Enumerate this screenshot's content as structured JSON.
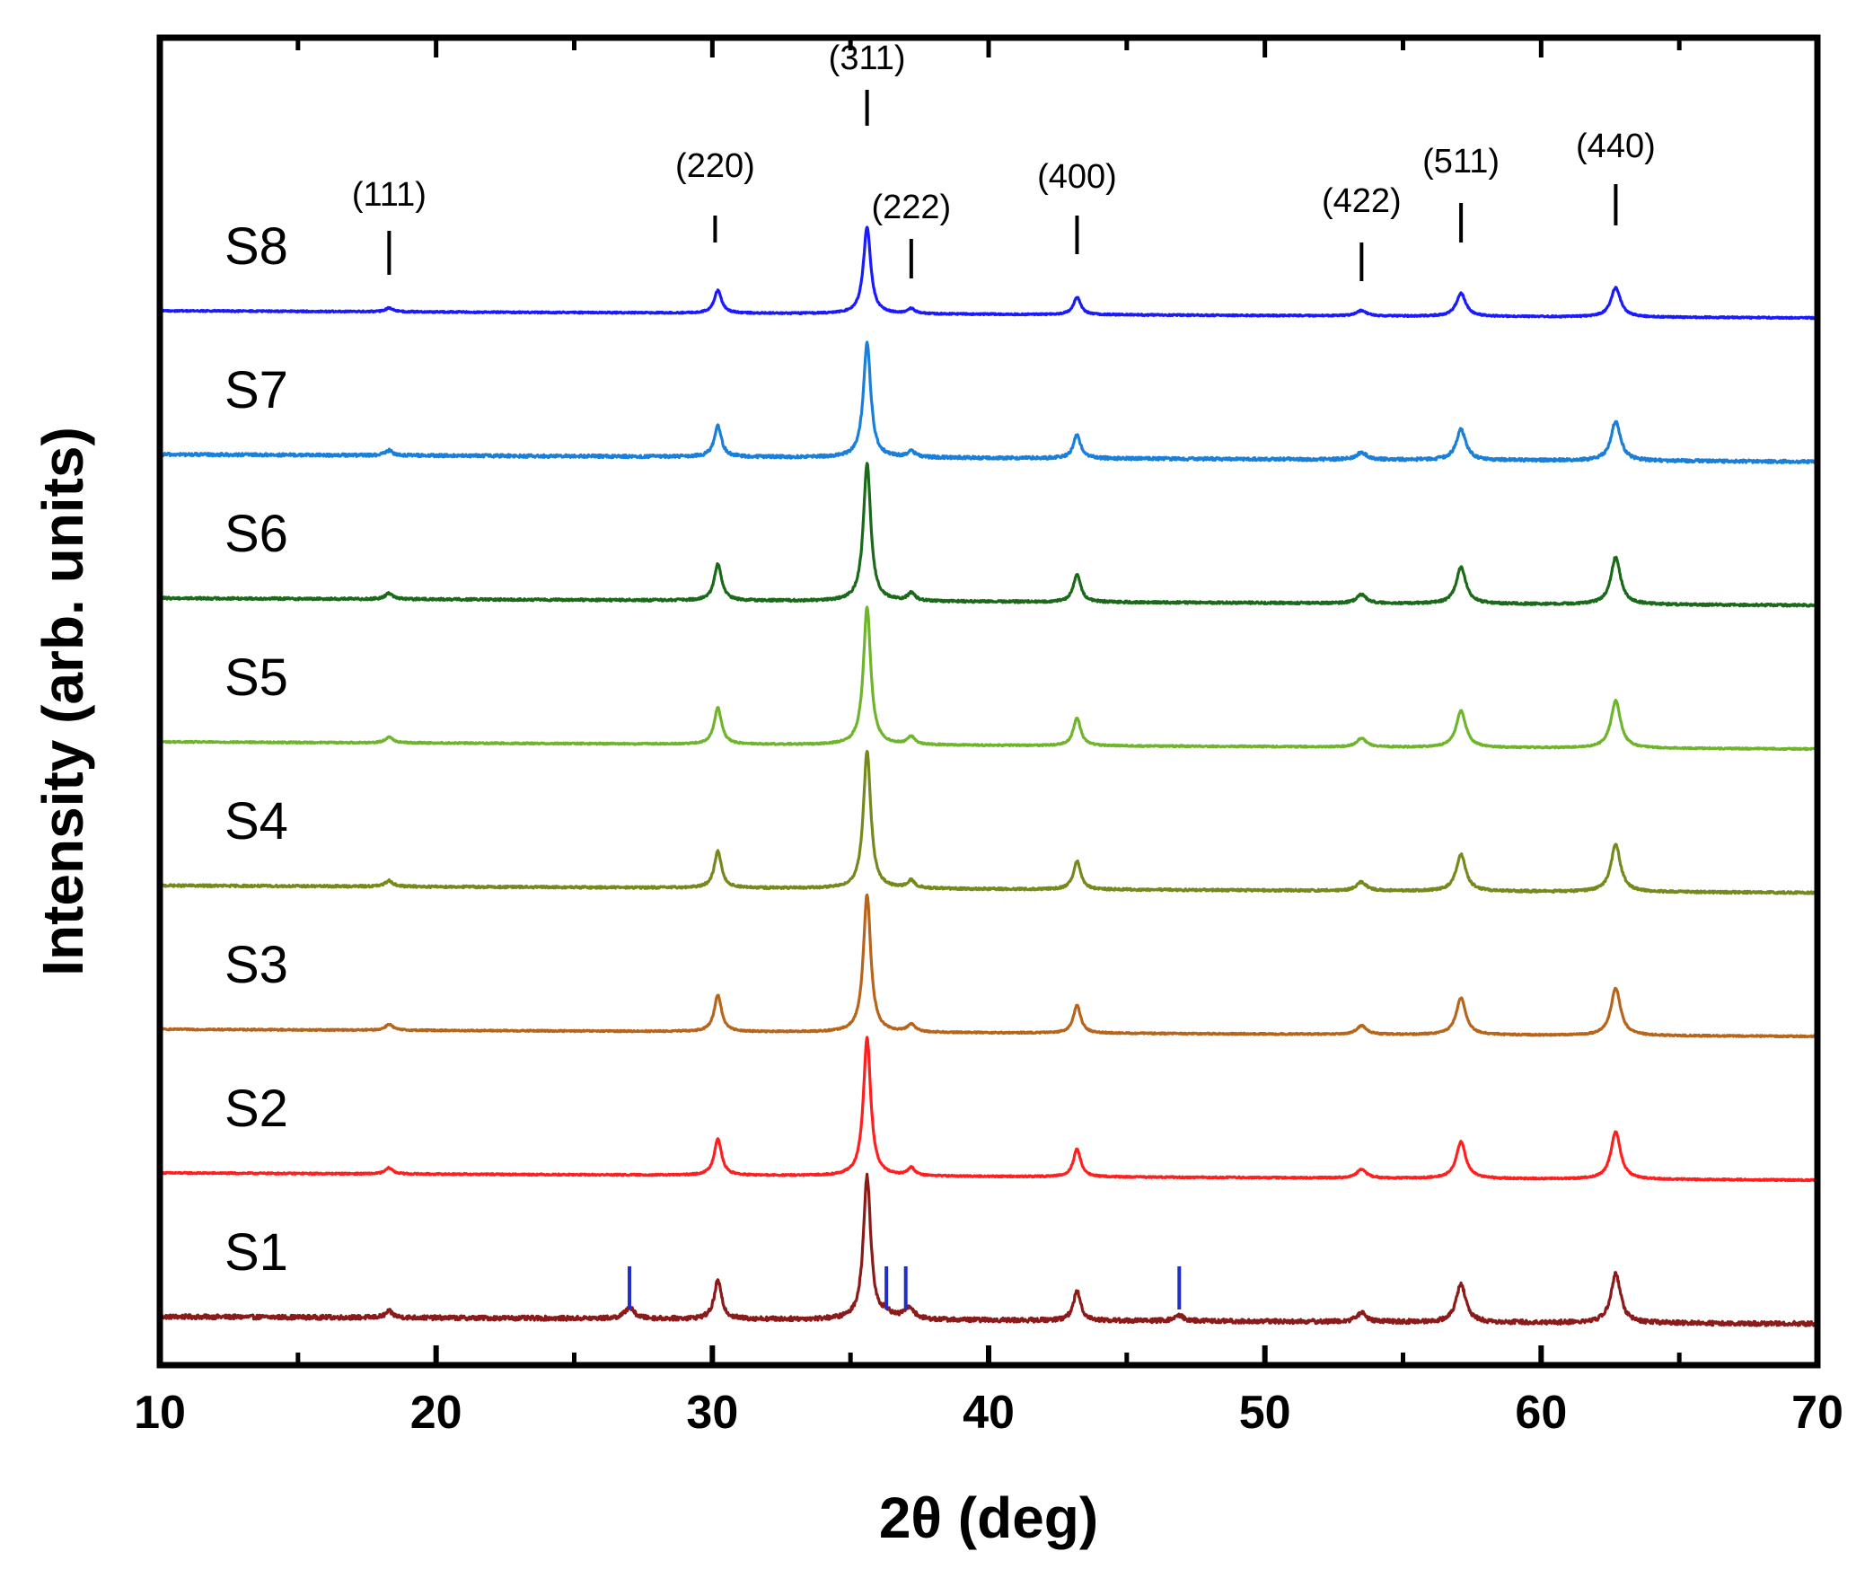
{
  "chart_data": {
    "type": "line",
    "title": "",
    "xlabel": "2θ (deg)",
    "ylabel": "Intensity (arb. units)",
    "xlim": [
      10,
      70
    ],
    "xticks": [
      10,
      20,
      30,
      40,
      50,
      60,
      70
    ],
    "xtick_labels": [
      "10",
      "20",
      "30",
      "40",
      "50",
      "60",
      "70"
    ],
    "yticks": [],
    "grid": false,
    "legend": "none (series labeled inline at left)",
    "peak_positions": [
      18.3,
      30.2,
      35.6,
      37.2,
      43.2,
      53.5,
      57.1,
      62.7
    ],
    "peak_heights": [
      0.14,
      0.85,
      3.2,
      0.18,
      0.65,
      0.2,
      0.85,
      1.1
    ],
    "secondary_peak_positions": [
      27.0,
      36.3,
      37.0,
      46.9
    ],
    "secondary_peak_heights": [
      0.25,
      0.12,
      0.12,
      0.12
    ],
    "reflections": [
      {
        "label": "(111)",
        "x": 18.3
      },
      {
        "label": "(220)",
        "x": 30.1
      },
      {
        "label": "(311)",
        "x": 35.6
      },
      {
        "label": "(222)",
        "x": 37.2
      },
      {
        "label": "(400)",
        "x": 43.2
      },
      {
        "label": "(422)",
        "x": 53.5
      },
      {
        "label": "(511)",
        "x": 57.1
      },
      {
        "label": "(440)",
        "x": 62.7
      }
    ],
    "impurity_markers": [
      27.0,
      36.3,
      37.0,
      46.9
    ],
    "impurity_marker_color": "#1f2fc8",
    "series": [
      {
        "name": "S1",
        "color": "#8b1a1a",
        "offset": 0,
        "scale": 1.25,
        "noise": 0.06
      },
      {
        "name": "S2",
        "color": "#ff1f1f",
        "offset": 1,
        "scale": 1.2,
        "noise": 0.02
      },
      {
        "name": "S3",
        "color": "#b8651c",
        "offset": 2,
        "scale": 1.2,
        "noise": 0.02
      },
      {
        "name": "S4",
        "color": "#758a1c",
        "offset": 3,
        "scale": 1.2,
        "noise": 0.03
      },
      {
        "name": "S5",
        "color": "#6fb52c",
        "offset": 4,
        "scale": 1.2,
        "noise": 0.02
      },
      {
        "name": "S6",
        "color": "#1a6a1a",
        "offset": 5,
        "scale": 1.2,
        "noise": 0.03
      },
      {
        "name": "S7",
        "color": "#1a7fd8",
        "offset": 6,
        "scale": 1.0,
        "noise": 0.04
      },
      {
        "name": "S8",
        "color": "#1a1aff",
        "offset": 7,
        "scale": 0.75,
        "noise": 0.02
      }
    ]
  }
}
